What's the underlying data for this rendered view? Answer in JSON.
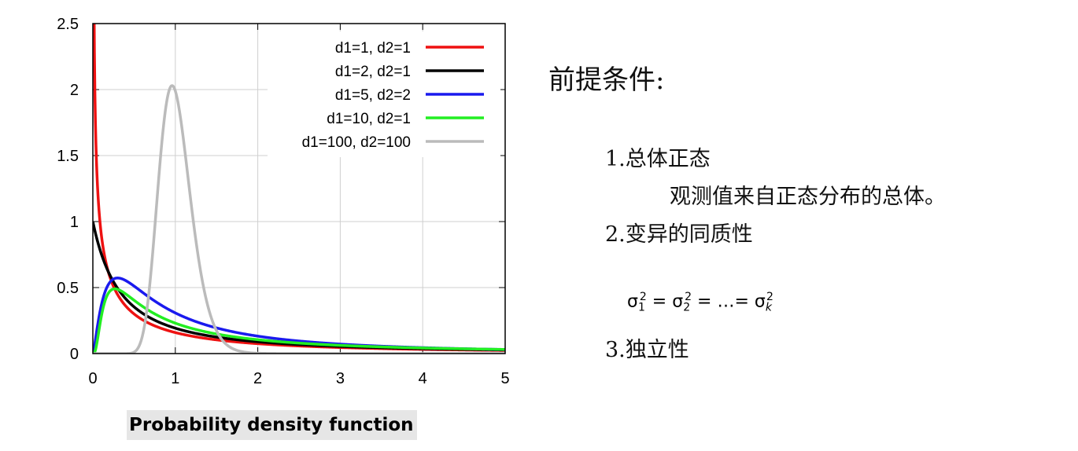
{
  "chart_data": {
    "type": "line",
    "title": "",
    "xlabel": "",
    "ylabel": "",
    "xlim": [
      0,
      5
    ],
    "ylim": [
      0,
      2.5
    ],
    "x_ticks": [
      "0",
      "1",
      "2",
      "3",
      "4",
      "5"
    ],
    "y_ticks": [
      "0",
      "0.5",
      "1",
      "1.5",
      "2",
      "2.5"
    ],
    "grid": true,
    "legend_position": "top-right",
    "series": [
      {
        "name": "d1=1, d2=1",
        "d1": 1,
        "d2": 1,
        "color": "#ee1111",
        "x": [
          0.01,
          0.03,
          0.05,
          0.1,
          0.2,
          0.3,
          0.5,
          0.75,
          1,
          1.5,
          2,
          3,
          4,
          5
        ],
        "y": [
          3.15,
          1.79,
          1.35,
          0.87,
          0.51,
          0.37,
          0.26,
          0.2,
          0.16,
          0.1,
          0.075,
          0.046,
          0.032,
          0.024
        ]
      },
      {
        "name": "d1=2, d2=1",
        "d1": 2,
        "d2": 1,
        "color": "#000000",
        "x": [
          0,
          0.1,
          0.2,
          0.3,
          0.5,
          0.75,
          1,
          1.5,
          2,
          3,
          4,
          5
        ],
        "y": [
          1,
          0.75,
          0.58,
          0.47,
          0.35,
          0.26,
          0.19,
          0.13,
          0.096,
          0.062,
          0.044,
          0.034
        ]
      },
      {
        "name": "d1=5, d2=2",
        "d1": 5,
        "d2": 2,
        "color": "#1a1aee",
        "x": [
          0,
          0.1,
          0.2,
          0.3,
          0.4,
          0.5,
          0.75,
          1,
          1.5,
          2,
          3,
          4,
          5
        ],
        "y": [
          0,
          0.36,
          0.54,
          0.58,
          0.57,
          0.53,
          0.44,
          0.36,
          0.25,
          0.18,
          0.1,
          0.064,
          0.044
        ]
      },
      {
        "name": "d1=10, d2=1",
        "d1": 10,
        "d2": 1,
        "color": "#22ee22",
        "x": [
          0,
          0.1,
          0.2,
          0.3,
          0.4,
          0.5,
          0.75,
          1,
          1.5,
          2,
          3,
          4,
          5
        ],
        "y": [
          0,
          0.28,
          0.46,
          0.49,
          0.46,
          0.42,
          0.32,
          0.25,
          0.17,
          0.12,
          0.072,
          0.05,
          0.037
        ]
      },
      {
        "name": "d1=100, d2=100",
        "d1": 100,
        "d2": 100,
        "color": "#bbbbbb",
        "x": [
          0.5,
          0.6,
          0.7,
          0.8,
          0.9,
          0.98,
          1.1,
          1.2,
          1.3,
          1.4,
          1.5,
          1.6,
          1.8,
          2
        ],
        "y": [
          0.0,
          0.03,
          0.25,
          0.95,
          1.75,
          1.99,
          1.6,
          1.0,
          0.53,
          0.25,
          0.1,
          0.04,
          0.01,
          0.0
        ]
      }
    ]
  },
  "caption": "Probability density function",
  "side_text": {
    "heading": "前提条件:",
    "item1": "1.总体正态",
    "item1_detail": "观测值来自正态分布的总体。",
    "item2": "2.变异的同质性",
    "formula": {
      "sym": "σ",
      "sub1": "1",
      "sub2": "2",
      "subk": "k",
      "sup": "2",
      "eq": "=",
      "dots": "…"
    },
    "item3": "3.独立性"
  }
}
